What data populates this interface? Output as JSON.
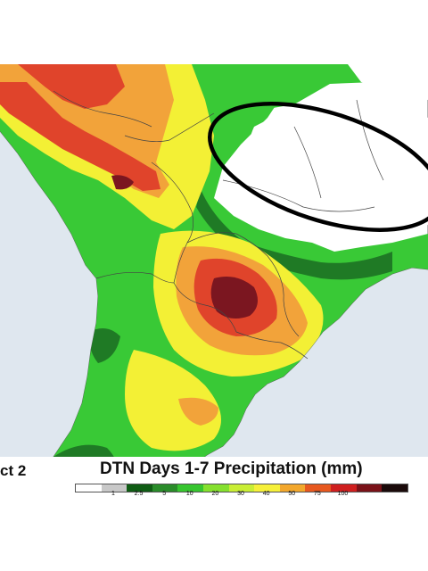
{
  "map": {
    "region": "South America",
    "highlight_shape": "ellipse"
  },
  "legend": {
    "date": "ct 2",
    "title": "DTN Days 1-7 Precipitation (mm)",
    "ticks": [
      "1",
      "2.5",
      "5",
      "10",
      "20",
      "30",
      "40",
      "50",
      "75",
      "100"
    ],
    "colors": [
      "#ffffff",
      "#c8c8c8",
      "#0f5c14",
      "#2a8c2a",
      "#37c52f",
      "#85e02e",
      "#c9ee35",
      "#f6f03a",
      "#f2a72c",
      "#e7581f",
      "#cf1f1f",
      "#7a1218",
      "#1a0a0a"
    ]
  },
  "colors": {
    "ocean": "#dfe7ef",
    "dry_land": "#ffffff",
    "light_green": "#39c936",
    "dark_green": "#1f7a25",
    "yellow": "#f3f035",
    "orange": "#f2a33a",
    "red": "#e0442b",
    "maroon": "#7b1620",
    "highlight_outline": "#000000"
  }
}
